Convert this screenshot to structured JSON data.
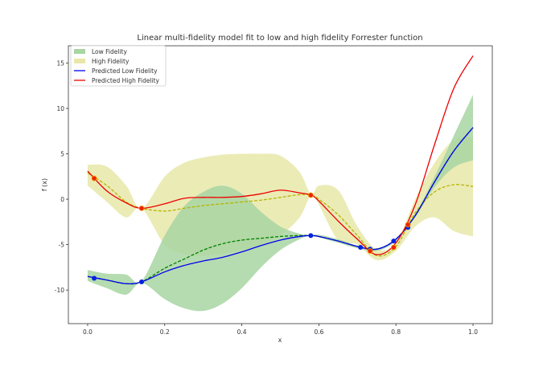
{
  "chart_data": {
    "type": "line",
    "title": "Linear multi-fidelity model fit to low and high fidelity Forrester function",
    "xlabel": "x",
    "ylabel": "f (x)",
    "xlim": [
      -0.05,
      1.05
    ],
    "ylim": [
      -13.7,
      16.9
    ],
    "xticks": [
      "0.0",
      "0.2",
      "0.4",
      "0.6",
      "0.8",
      "1.0"
    ],
    "yticks": [
      "-10",
      "-5",
      "0",
      "5",
      "10",
      "15"
    ],
    "grid": false,
    "legend_position": "top-left",
    "legend": [
      "Low Fidelity",
      "High Fidelity",
      "Predicted Low Fidelity",
      "Predicted High Fidelity"
    ],
    "colors": {
      "low_band": "#a8d5a2",
      "high_band": "#e8e7a9",
      "low_pred": "#0000ee",
      "high_pred": "#ee0000",
      "low_mean": "#008000",
      "high_mean": "#b5b500",
      "low_points": "#0022dd",
      "high_points": "#ee2200"
    },
    "x": [
      0,
      0.05,
      0.1,
      0.14,
      0.2,
      0.25,
      0.3,
      0.35,
      0.4,
      0.45,
      0.5,
      0.55,
      0.58,
      0.6,
      0.65,
      0.7,
      0.75,
      0.8,
      0.85,
      0.9,
      0.95,
      1.0
    ],
    "series": [
      {
        "name": "Predicted Low Fidelity",
        "values": [
          -8.5,
          -8.9,
          -9.3,
          -9.1,
          -8.0,
          -7.3,
          -6.8,
          -6.4,
          -5.8,
          -5.1,
          -4.5,
          -4.1,
          -4.0,
          -4.1,
          -4.6,
          -5.2,
          -5.5,
          -4.4,
          -1.8,
          1.9,
          5.3,
          7.9
        ]
      },
      {
        "name": "Predicted High Fidelity",
        "values": [
          3.1,
          0.9,
          -0.4,
          -1.0,
          -0.5,
          0.1,
          0.2,
          0.2,
          0.3,
          0.6,
          1.0,
          0.7,
          0.45,
          -0.2,
          -2.4,
          -4.4,
          -6.1,
          -4.8,
          -0.6,
          6.0,
          12.2,
          15.8
        ]
      }
    ],
    "low_fidelity_mean": [
      -8.5,
      -8.9,
      -9.3,
      -9.1,
      -7.6,
      -6.6,
      -5.6,
      -4.9,
      -4.5,
      -4.3,
      -4.1,
      -4.0,
      -4.0,
      -4.1,
      -4.6,
      -5.2,
      -5.5,
      -4.4,
      -1.8,
      1.9,
      5.3,
      7.9
    ],
    "high_fidelity_mean": [
      2.9,
      1.5,
      -0.3,
      -1.0,
      -1.3,
      -1.0,
      -0.7,
      -0.5,
      -0.3,
      -0.1,
      0.2,
      0.5,
      0.45,
      0,
      -1.7,
      -4.0,
      -6.2,
      -5.2,
      -1.5,
      0.8,
      1.6,
      1.4
    ],
    "low_band": {
      "upper": [
        -7.8,
        -8.2,
        -8.3,
        -9.0,
        -4.0,
        -0.8,
        0.8,
        1.5,
        0.6,
        -1.4,
        -3.0,
        -3.8,
        -4.0,
        -3.9,
        -4.4,
        -5.1,
        -5.4,
        -4.3,
        -1.6,
        2.5,
        7.0,
        11.5
      ],
      "lower": [
        -9.0,
        -9.8,
        -10.5,
        -9.2,
        -11.0,
        -12.0,
        -12.3,
        -11.5,
        -9.8,
        -7.5,
        -5.6,
        -4.4,
        -4.0,
        -4.2,
        -4.8,
        -5.4,
        -5.7,
        -4.6,
        -2.0,
        1.3,
        3.5,
        4.3
      ]
    },
    "high_band": {
      "upper": [
        3.8,
        3.6,
        1.5,
        -1.0,
        2.5,
        4.0,
        4.6,
        4.9,
        5.0,
        5.0,
        4.8,
        3.0,
        0.45,
        1.5,
        1.0,
        -3.0,
        -5.5,
        -4.8,
        0.0,
        4.0,
        6.5,
        6.8
      ],
      "lower": [
        1.5,
        -0.3,
        -2.0,
        -1.0,
        -5.0,
        -6.0,
        -6.2,
        -6.0,
        -5.6,
        -5.0,
        -4.0,
        -2.0,
        0.45,
        -0.6,
        -4.5,
        -5.0,
        -6.7,
        -5.7,
        -3.0,
        -2.0,
        -3.5,
        -4.1
      ]
    },
    "low_points": {
      "x": [
        0.017,
        0.14,
        0.579,
        0.708,
        0.733,
        0.794,
        0.831
      ],
      "y": [
        -8.7,
        -9.1,
        -4.0,
        -5.3,
        -5.5,
        -4.6,
        -3.1
      ]
    },
    "high_points": {
      "x": [
        0.017,
        0.14,
        0.579,
        0.733,
        0.794,
        0.831
      ],
      "y": [
        2.3,
        -1.0,
        0.45,
        -5.7,
        -5.3,
        -2.8
      ]
    }
  }
}
